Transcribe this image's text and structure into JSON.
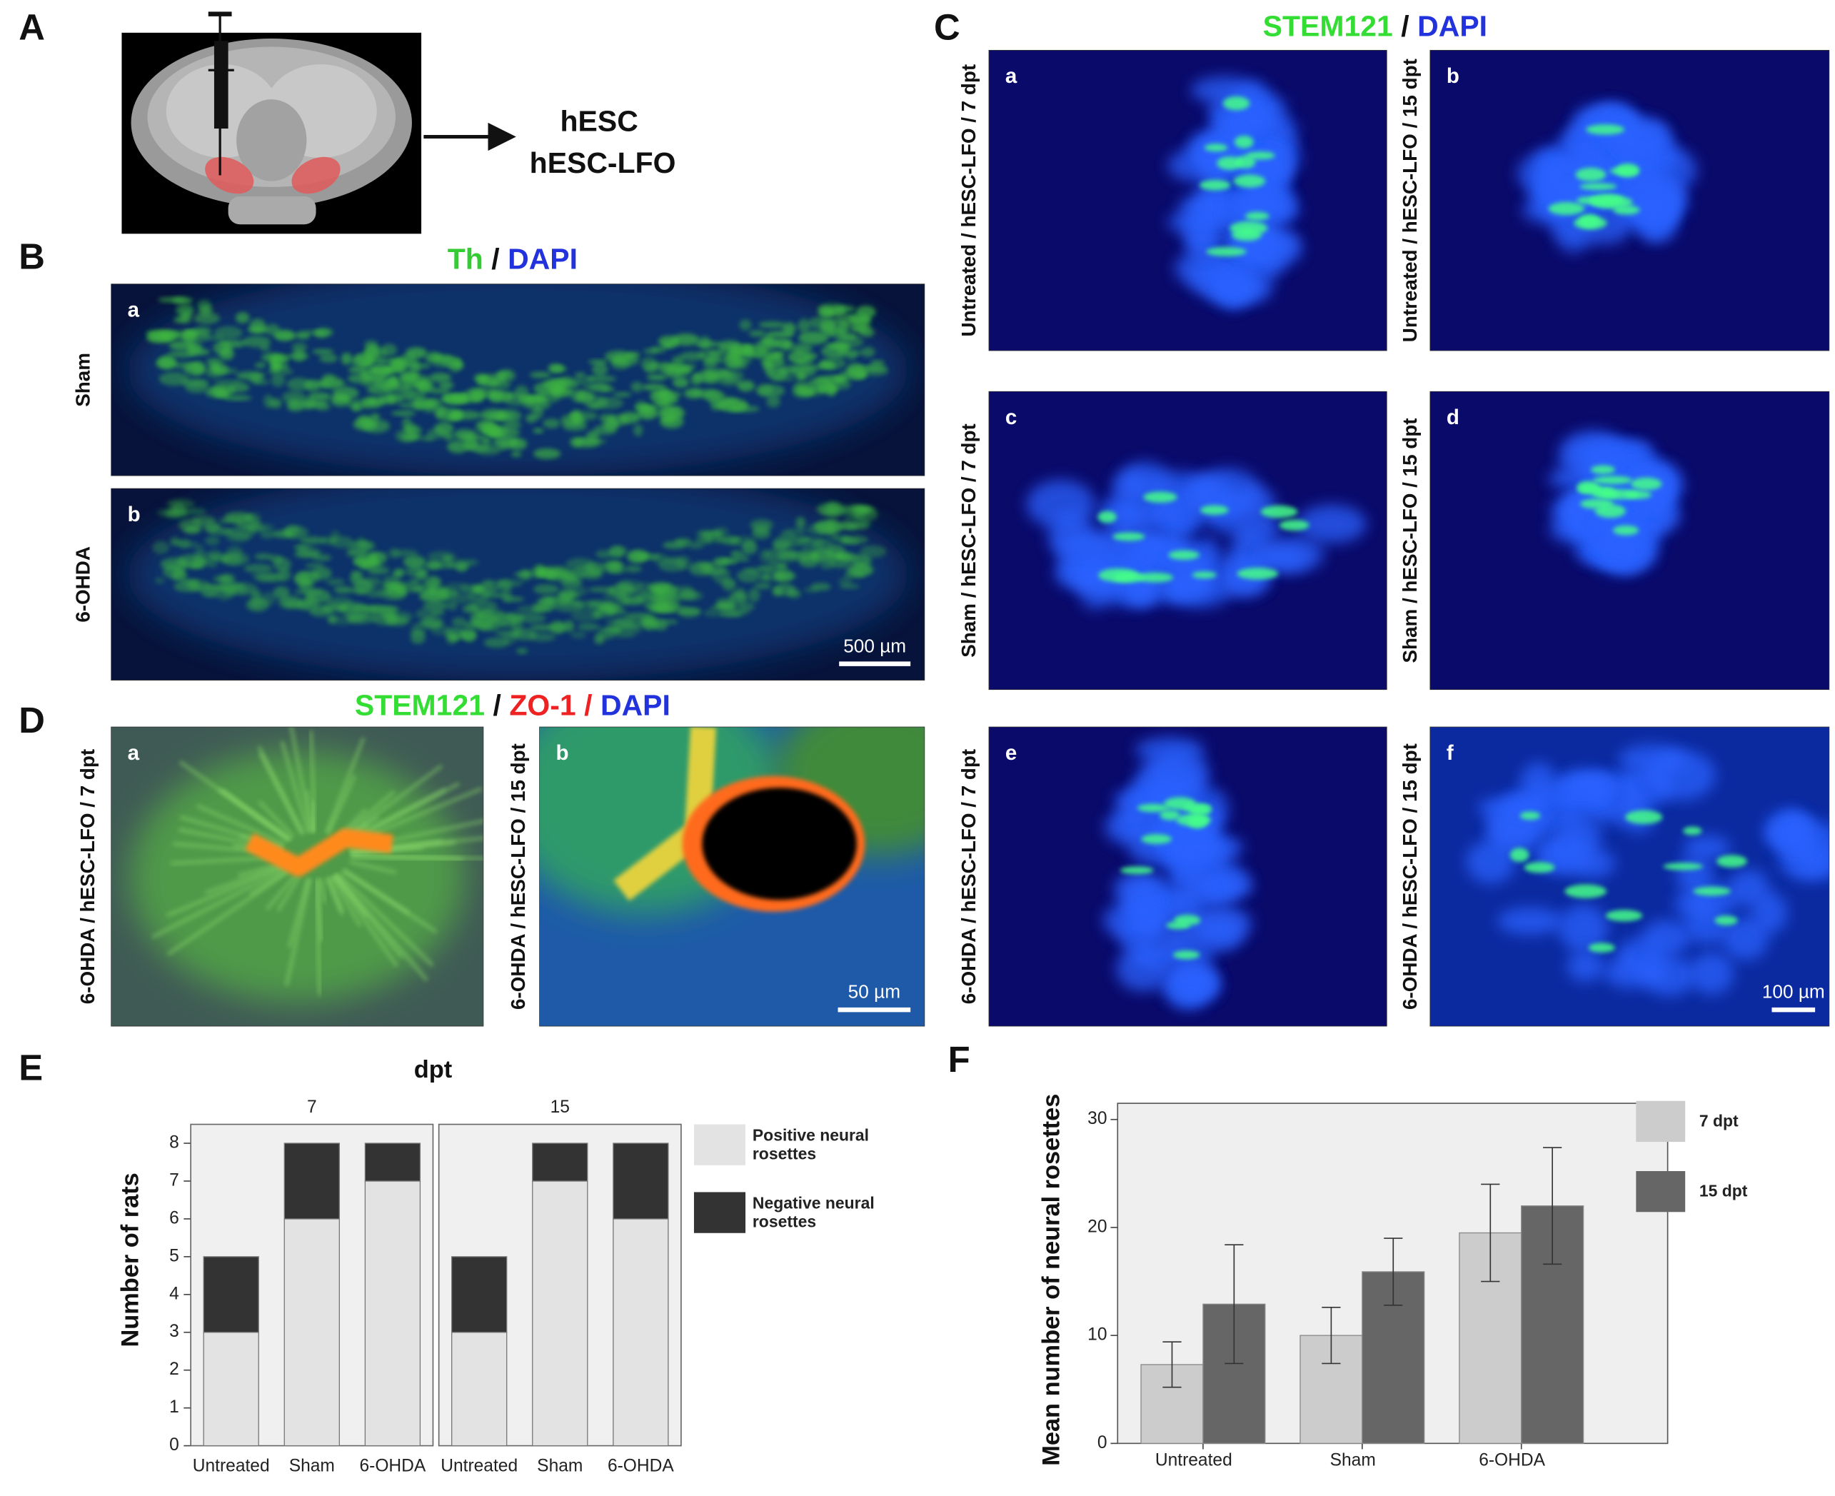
{
  "panels": {
    "A": {
      "letter": "A",
      "targets": [
        "hESC",
        "hESC-LFO"
      ]
    },
    "B": {
      "letter": "B",
      "title": [
        {
          "text": "Th",
          "color": "#33cc33"
        },
        {
          "text": "/",
          "color": "#111111"
        },
        {
          "text": "DAPI",
          "color": "#2233dd"
        }
      ],
      "images": [
        {
          "letter": "a",
          "label": "Sham"
        },
        {
          "letter": "b",
          "label": "6-OHDA",
          "scale_bar": "500 µm"
        }
      ]
    },
    "C": {
      "letter": "C",
      "title": [
        {
          "text": "STEM121",
          "color": "#33dd33"
        },
        {
          "text": "/",
          "color": "#111111"
        },
        {
          "text": "DAPI",
          "color": "#2233dd"
        }
      ],
      "images": [
        {
          "letter": "a",
          "label": "Untreated / hESC-LFO / 7 dpt"
        },
        {
          "letter": "b",
          "label": "Untreated / hESC-LFO / 15 dpt"
        },
        {
          "letter": "c",
          "label": "Sham / hESC-LFO / 7 dpt"
        },
        {
          "letter": "d",
          "label": "Sham / hESC-LFO / 15 dpt"
        },
        {
          "letter": "e",
          "label": "6-OHDA / hESC-LFO / 7 dpt"
        },
        {
          "letter": "f",
          "label": "6-OHDA / hESC-LFO / 15 dpt",
          "scale_bar": "100 µm"
        }
      ]
    },
    "D": {
      "letter": "D",
      "title": [
        {
          "text": "STEM121",
          "color": "#33dd33"
        },
        {
          "text": "/",
          "color": "#111111"
        },
        {
          "text": "ZO-1",
          "color": "#ee2222"
        },
        {
          "text": "/",
          "color": "#ee2222"
        },
        {
          "text": "DAPI",
          "color": "#2233dd"
        }
      ],
      "images": [
        {
          "letter": "a",
          "label": "6-OHDA / hESC-LFO / 7 dpt"
        },
        {
          "letter": "b",
          "label": "6-OHDA / hESC-LFO / 15 dpt",
          "scale_bar": "50 µm"
        }
      ]
    },
    "E": {
      "letter": "E"
    },
    "F": {
      "letter": "F"
    }
  },
  "chart_data": [
    {
      "type": "bar",
      "stacked": true,
      "title": "dpt",
      "y_label": "Number of rats",
      "categories": [
        "Untreated",
        "Sham",
        "6-OHDA"
      ],
      "facets": [
        {
          "name": "7",
          "series": [
            {
              "name": "Positive neural rosettes",
              "color": "#e3e3e3",
              "values": [
                3,
                6,
                7
              ]
            },
            {
              "name": "Negative neural rosettes",
              "color": "#333333",
              "values": [
                2,
                2,
                1
              ]
            }
          ]
        },
        {
          "name": "15",
          "series": [
            {
              "name": "Positive neural rosettes",
              "color": "#e3e3e3",
              "values": [
                3,
                7,
                6
              ]
            },
            {
              "name": "Negative neural rosettes",
              "color": "#333333",
              "values": [
                2,
                1,
                2
              ]
            }
          ]
        }
      ],
      "ylim": [
        0,
        8.5
      ],
      "yticks": [
        0,
        1,
        2,
        3,
        4,
        5,
        6,
        7,
        8
      ]
    },
    {
      "type": "bar",
      "grouped": true,
      "y_label": "Mean number of neural rosettes",
      "categories": [
        "Untreated",
        "Sham",
        "6-OHDA"
      ],
      "series": [
        {
          "name": "7 dpt",
          "color": "#cccccc",
          "values": [
            7.3,
            10,
            19.5
          ],
          "errors": [
            2.1,
            2.6,
            4.5
          ]
        },
        {
          "name": "15 dpt",
          "color": "#666666",
          "values": [
            12.9,
            15.9,
            22
          ],
          "errors": [
            5.5,
            3.1,
            5.4
          ]
        }
      ],
      "ylim": [
        0,
        31.5
      ],
      "yticks": [
        0,
        10,
        20,
        30
      ]
    }
  ]
}
